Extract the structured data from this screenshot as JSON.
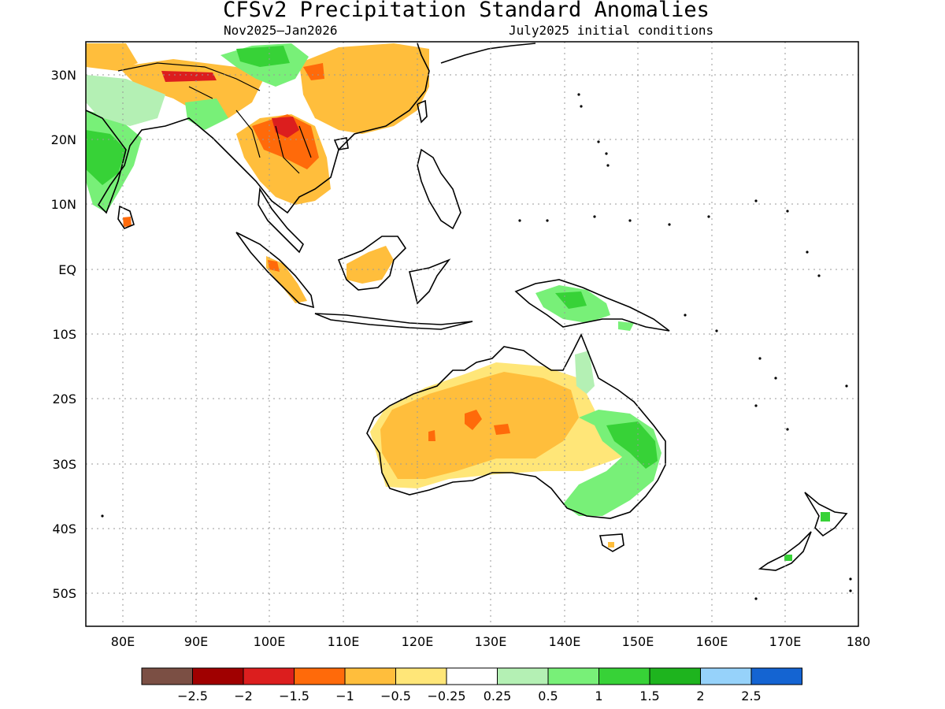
{
  "title": "CFSv2 Precipitation Standard Anomalies",
  "period": "Nov2025–Jan2026",
  "initial_conditions": "July2025 initial conditions",
  "map": {
    "lon_range": [
      75,
      180
    ],
    "lat_range": [
      -55,
      35
    ],
    "lon_ticks": [
      "80E",
      "90E",
      "100E",
      "110E",
      "120E",
      "130E",
      "140E",
      "150E",
      "160E",
      "170E",
      "180"
    ],
    "lat_ticks": [
      "30N",
      "20N",
      "10N",
      "EQ",
      "10S",
      "20S",
      "30S",
      "40S",
      "50S"
    ],
    "grid": "dotted",
    "coastlines": "black"
  },
  "colorbar": {
    "colors": [
      "#7b4f44",
      "#a00000",
      "#dc1e1e",
      "#ff6a0a",
      "#ffbe3c",
      "#ffe678",
      "#ffffff",
      "#b4f0b4",
      "#78f078",
      "#37d237",
      "#1eb41e",
      "#96d2fa",
      "#1464d2"
    ],
    "labels": [
      "−2.5",
      "−2",
      "−1.5",
      "−1",
      "−0.5",
      "−0.25",
      "0.25",
      "0.5",
      "1",
      "1.5",
      "2",
      "2.5"
    ]
  },
  "anomaly_regions": [
    {
      "name": "Australia interior",
      "category": "-1 to -0.5"
    },
    {
      "name": "Australia inner ring",
      "category": "-0.5 to -0.25"
    },
    {
      "name": "Australia southeast",
      "category": "0.5 to 1"
    },
    {
      "name": "Southern China",
      "category": "-1 to -0.5"
    },
    {
      "name": "Indochina",
      "category": "-1.5 to -1"
    },
    {
      "name": "Tibetan Plateau",
      "category": "1 to 1.5"
    },
    {
      "name": "India",
      "category": "0.5 to 1"
    },
    {
      "name": "Borneo",
      "category": "-1 to -0.5"
    },
    {
      "name": "New Guinea",
      "category": "1 to 1.5"
    }
  ]
}
